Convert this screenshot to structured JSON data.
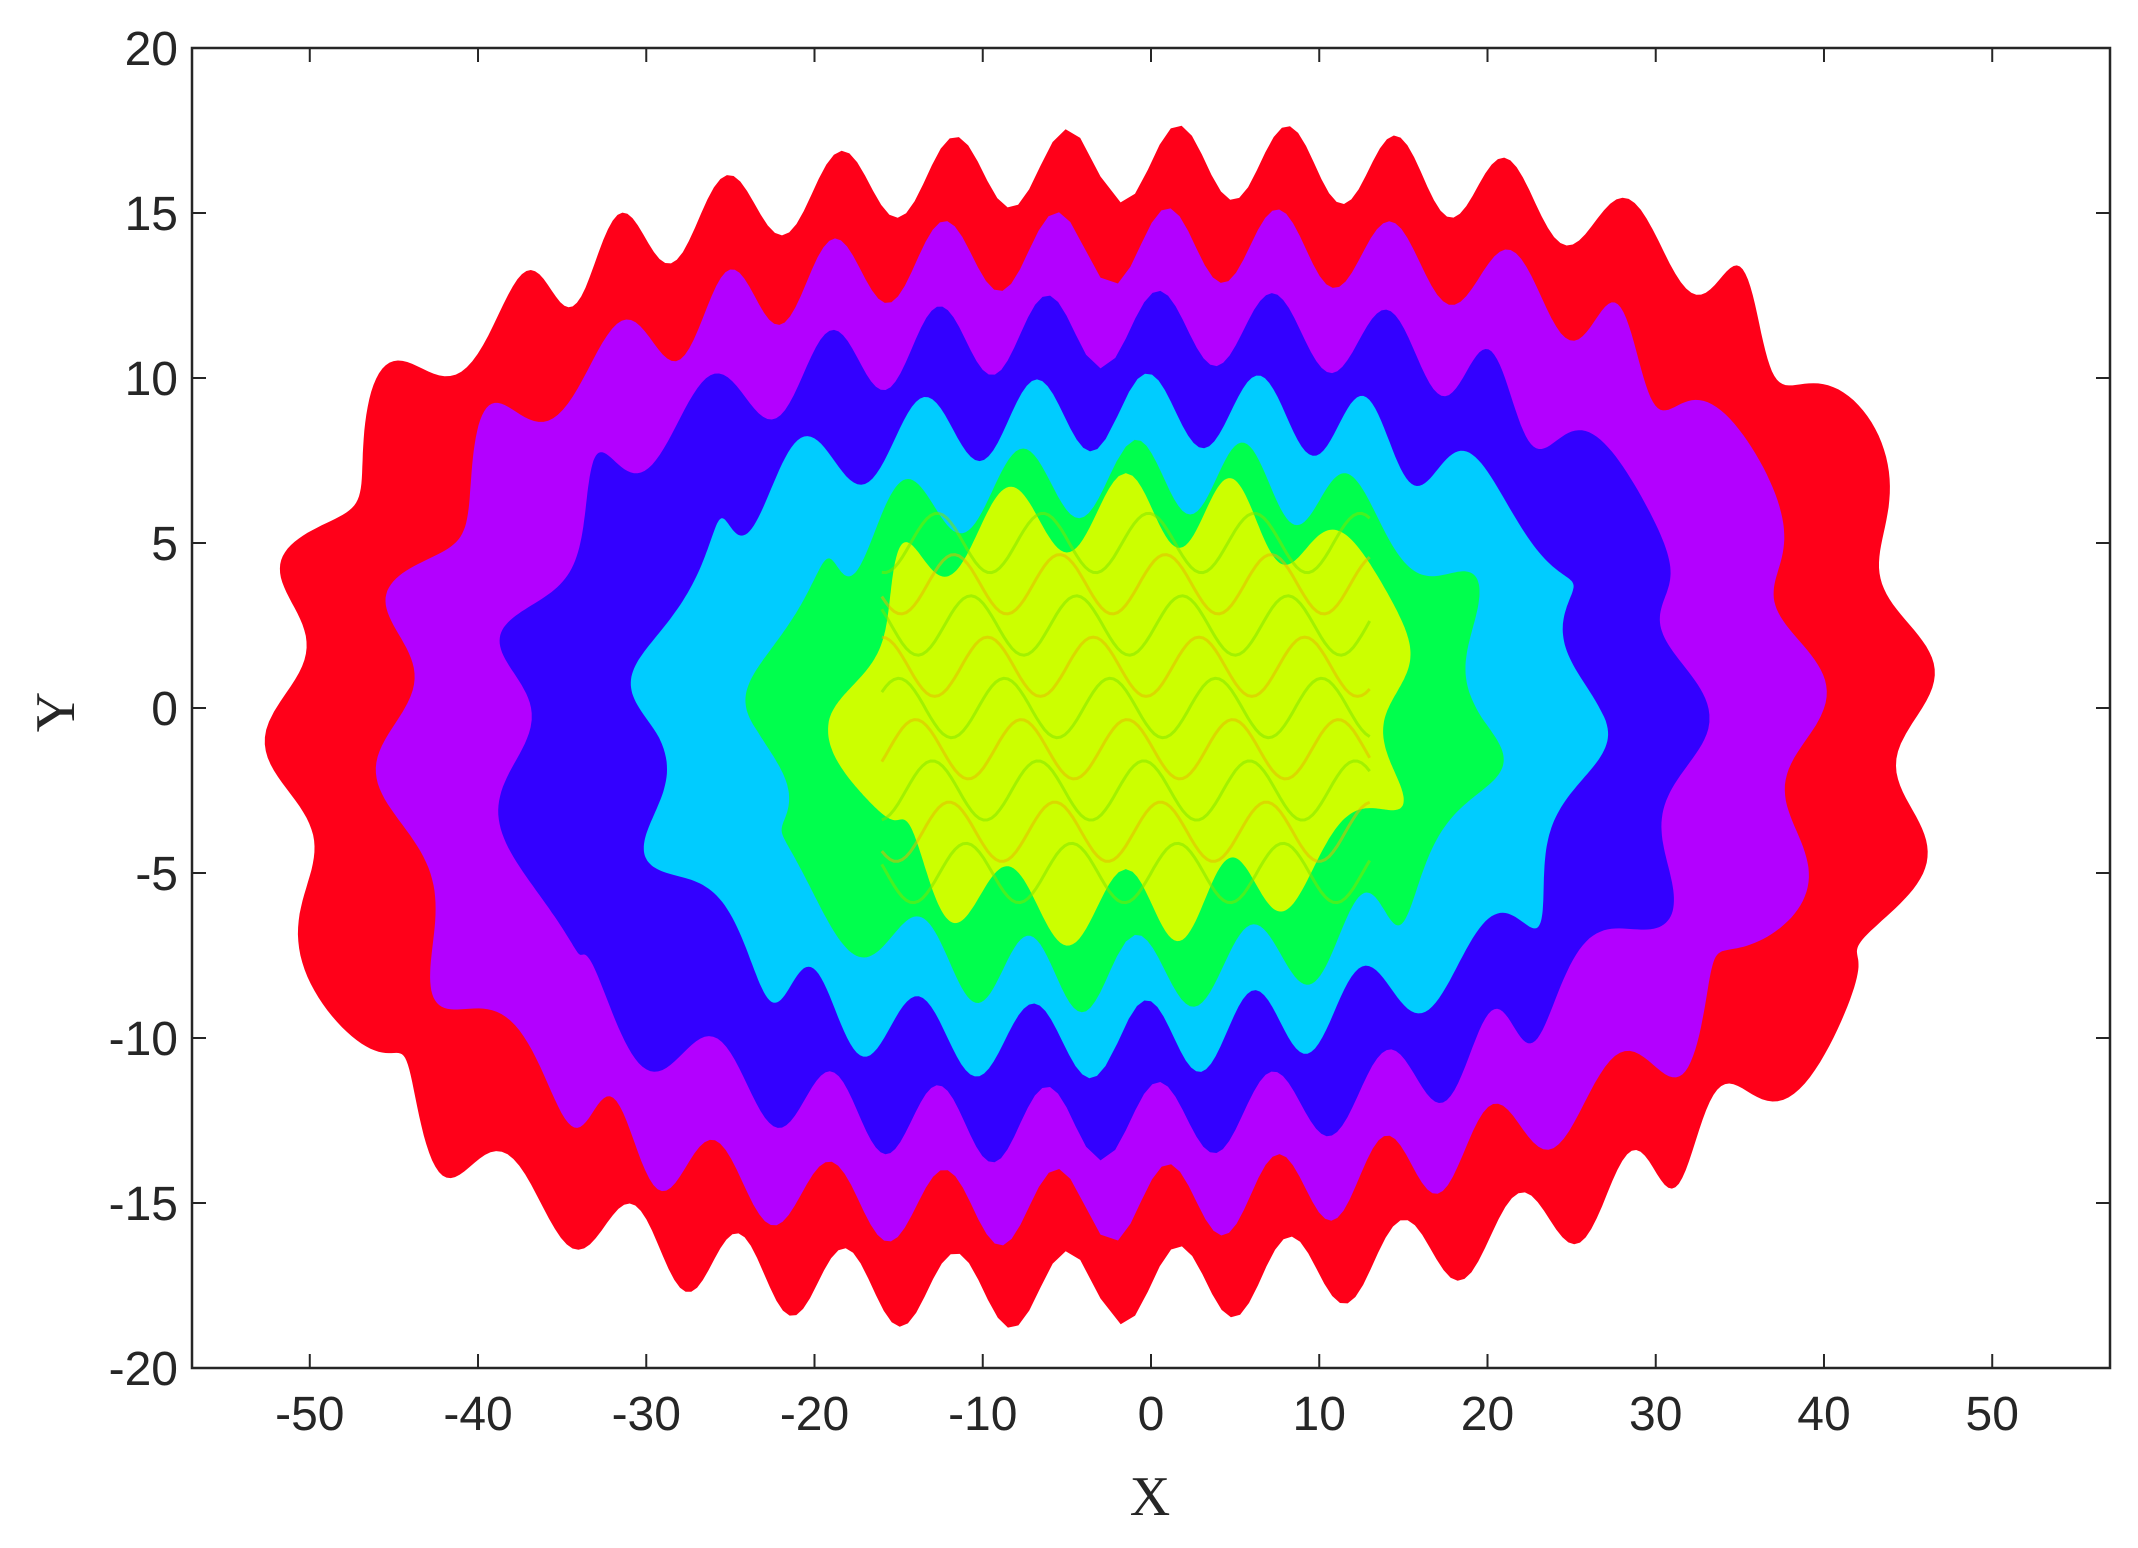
{
  "chart_data": {
    "type": "area",
    "title": "",
    "xlabel": "X",
    "ylabel": "Y",
    "xlim": [
      -57,
      57
    ],
    "ylim": [
      -20,
      20
    ],
    "xticks": [
      -50,
      -40,
      -30,
      -20,
      -10,
      0,
      10,
      20,
      30,
      40,
      50
    ],
    "yticks": [
      -20,
      -15,
      -10,
      -5,
      0,
      5,
      10,
      15,
      20
    ],
    "xtick_labels": [
      "-50",
      "-40",
      "-30",
      "-20",
      "-10",
      "0",
      "10",
      "20",
      "30",
      "40",
      "50"
    ],
    "ytick_labels": [
      "-20",
      "-15",
      "-10",
      "-5",
      "0",
      "5",
      "10",
      "15",
      "20"
    ],
    "grid": false,
    "legend": "none",
    "layers": [
      {
        "color": "#ff0019",
        "x_extent": [
          -51.5,
          45.5
        ],
        "y_extent": [
          -17.5,
          16.5
        ]
      },
      {
        "color": "#b300ff",
        "x_extent": [
          -45,
          39
        ],
        "y_extent": [
          -15,
          14
        ]
      },
      {
        "color": "#3300ff",
        "x_extent": [
          -38,
          32
        ],
        "y_extent": [
          -12.5,
          11.5
        ]
      },
      {
        "color": "#00ccff",
        "x_extent": [
          -30,
          26
        ],
        "y_extent": [
          -10,
          9
        ]
      },
      {
        "color": "#00ff4d",
        "x_extent": [
          -23,
          20
        ],
        "y_extent": [
          -8,
          7
        ]
      },
      {
        "color": "#ccff00",
        "x_extent": [
          -18,
          15
        ],
        "y_extent": [
          -6,
          6
        ]
      }
    ]
  }
}
